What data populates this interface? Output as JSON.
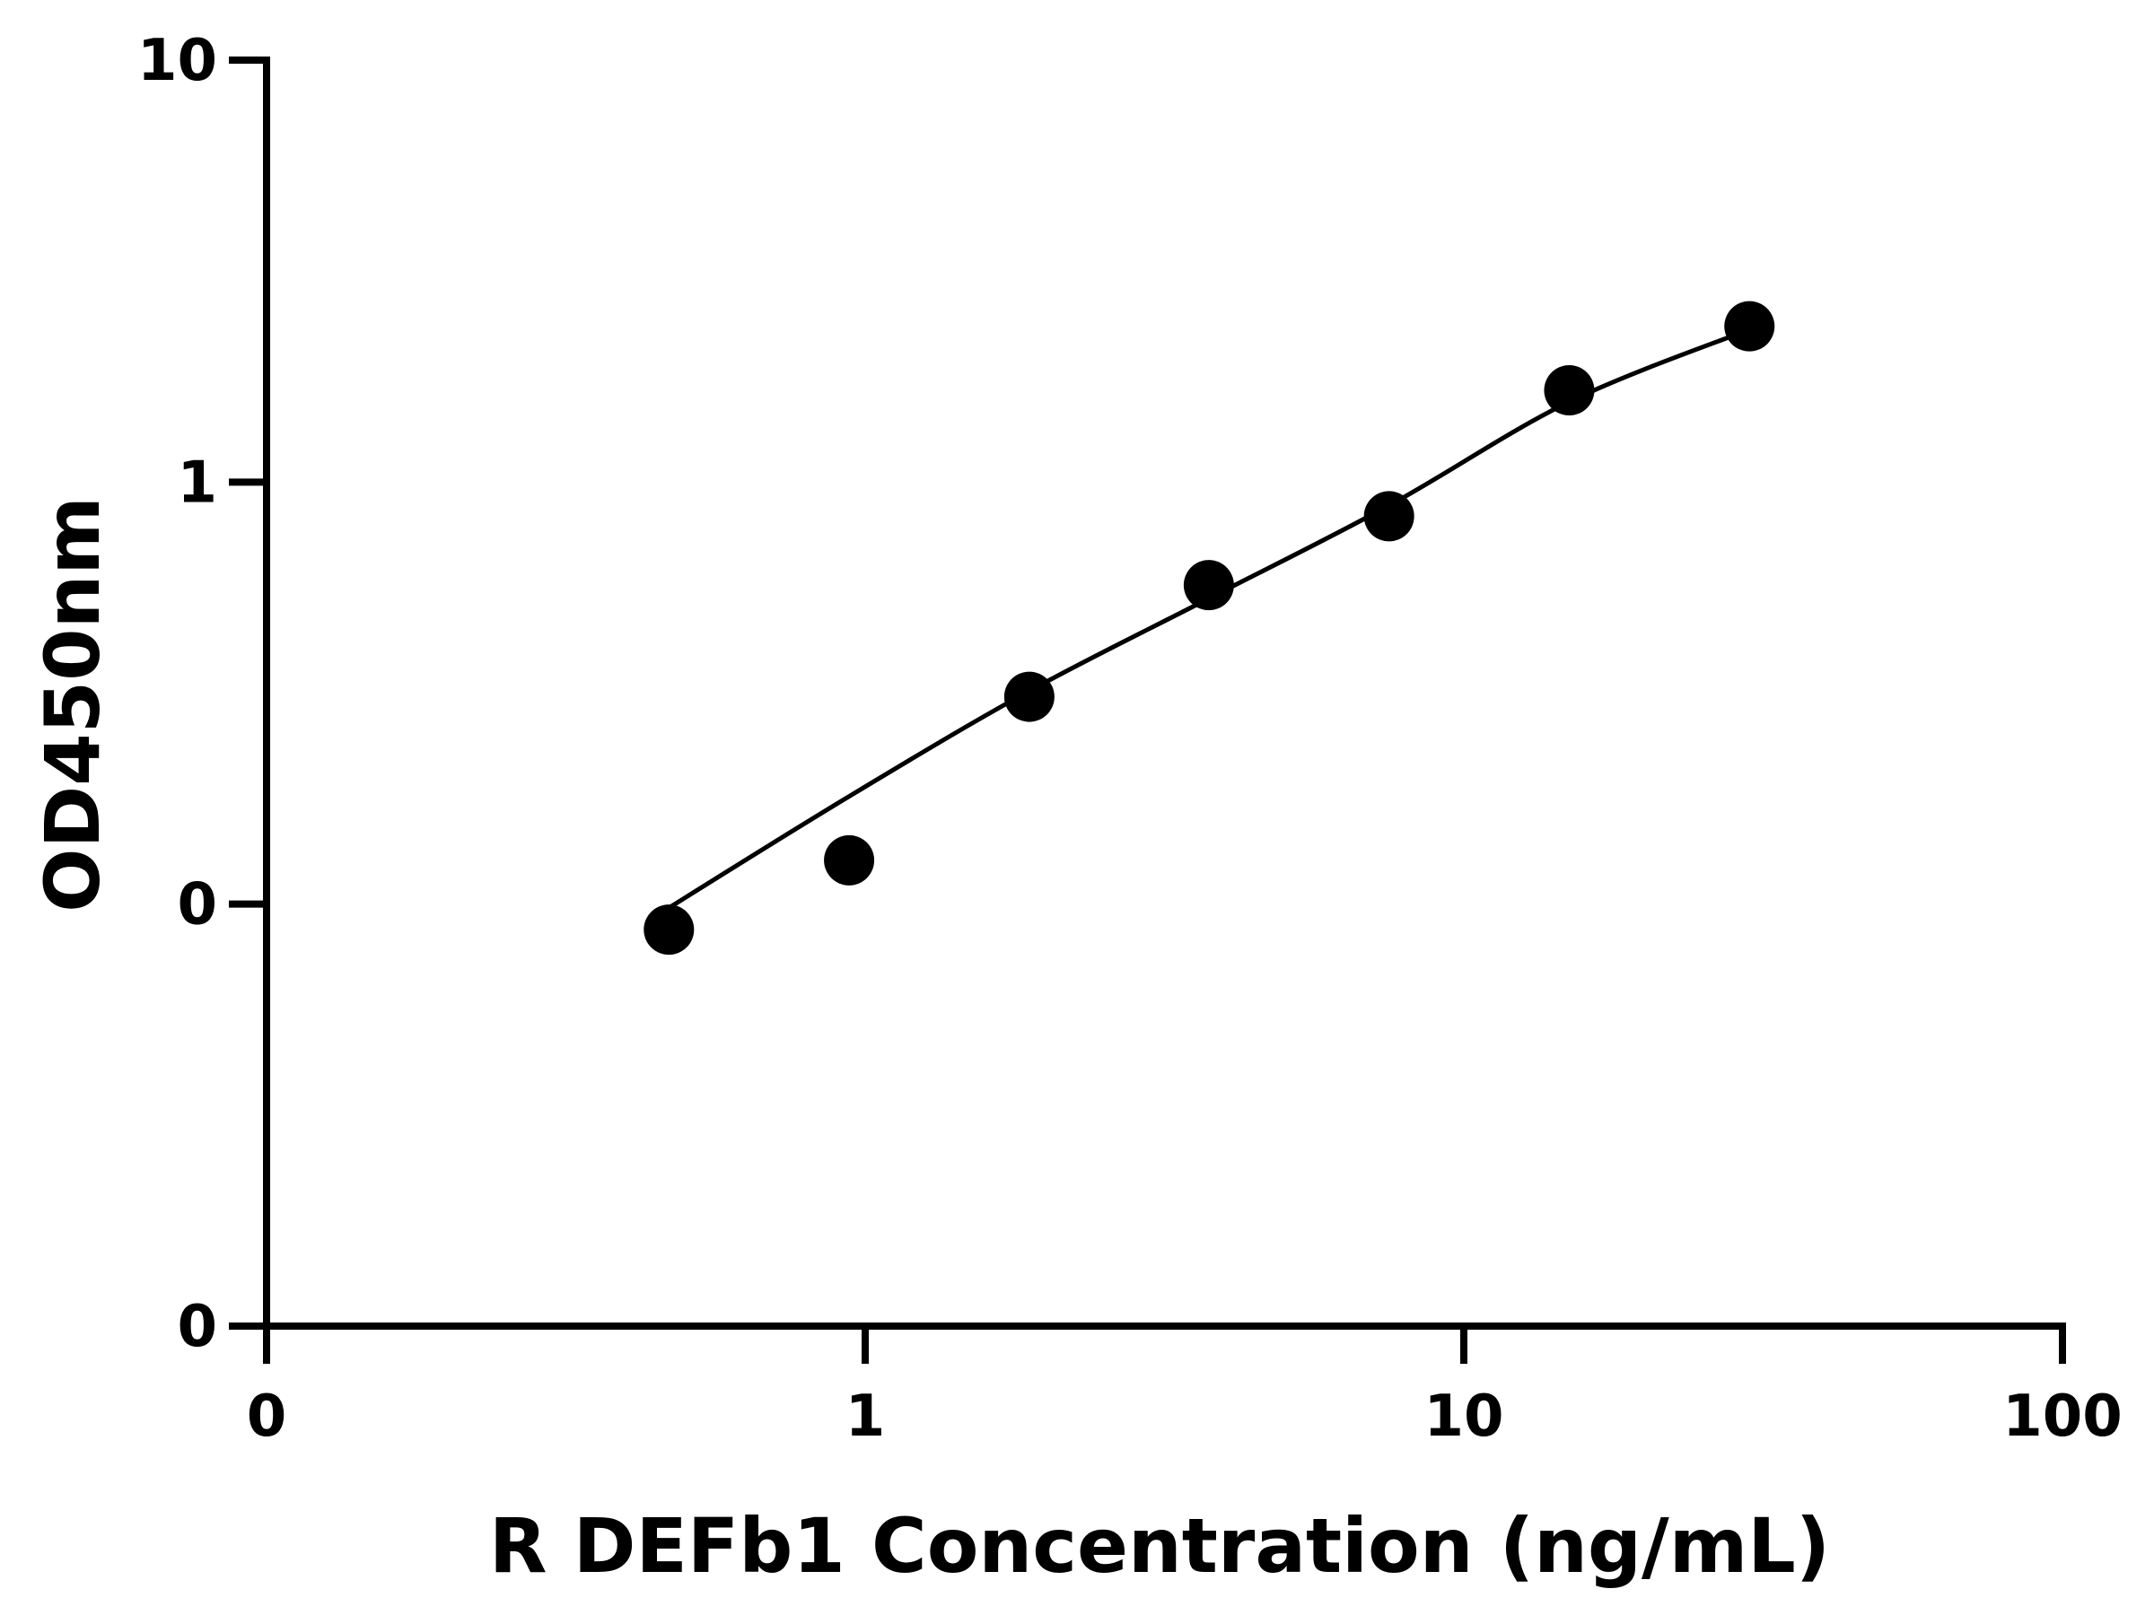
{
  "chart_data": {
    "type": "scatter",
    "title": "",
    "xlabel": "R DEFb1 Concentration (ng/mL)",
    "ylabel": "OD450nm",
    "x_scale": "log",
    "y_scale": "log",
    "xlim": [
      0.1,
      100
    ],
    "ylim": [
      0.01,
      10
    ],
    "x_ticks": [
      {
        "value": 0.1,
        "label": "0"
      },
      {
        "value": 1,
        "label": "1"
      },
      {
        "value": 10,
        "label": "10"
      },
      {
        "value": 100,
        "label": "100"
      }
    ],
    "y_ticks": [
      {
        "value": 0.01,
        "label": "0"
      },
      {
        "value": 0.1,
        "label": "0"
      },
      {
        "value": 1,
        "label": "1"
      },
      {
        "value": 10,
        "label": "10"
      }
    ],
    "grid": false,
    "legend": "none",
    "series": [
      {
        "x": [
          0.47,
          0.94,
          1.88,
          3.75,
          7.5,
          15,
          30
        ],
        "y": [
          0.087,
          0.127,
          0.31,
          0.57,
          0.83,
          1.65,
          2.34
        ],
        "marker": "filled-circle",
        "color": "#000000"
      }
    ],
    "fit_curve": {
      "x": [
        0.47,
        0.94,
        1.88,
        3.75,
        7.5,
        15,
        30
      ],
      "y": [
        0.098,
        0.18,
        0.32,
        0.53,
        0.88,
        1.55,
        2.3
      ],
      "color": "#000000"
    }
  }
}
